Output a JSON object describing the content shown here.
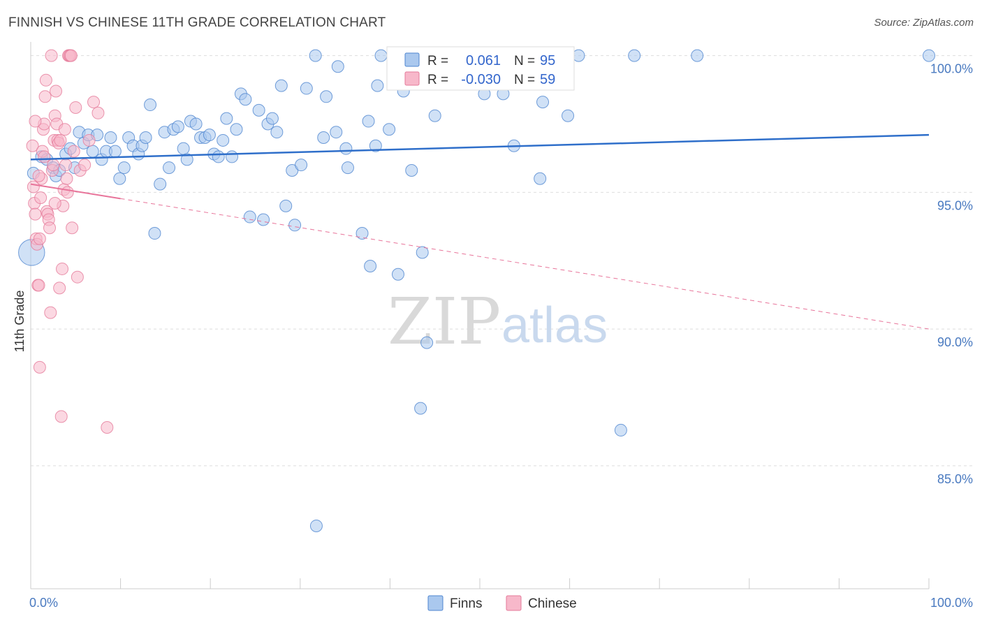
{
  "header": {
    "title": "FINNISH VS CHINESE 11TH GRADE CORRELATION CHART",
    "source": "Source: ZipAtlas.com"
  },
  "watermark": {
    "zip": "ZIP",
    "atlas": "atlas"
  },
  "stats": {
    "finns": {
      "r_label": "R =",
      "r_value": "0.061",
      "n_label": "N =",
      "n_value": "95"
    },
    "chinese": {
      "r_label": "R =",
      "r_value": "-0.030",
      "n_label": "N =",
      "n_value": "59"
    }
  },
  "legend": {
    "finns": "Finns",
    "chinese": "Chinese"
  },
  "colors": {
    "finns_fill": "#aac8ee",
    "finns_stroke": "#4f86d0",
    "finns_line": "#2f6fca",
    "chinese_fill": "#f7b8ca",
    "chinese_stroke": "#e57a9a",
    "chinese_line": "#e8749a",
    "grid": "#dddddd",
    "tick_text": "#4a7ac0"
  },
  "chart_data": {
    "type": "scatter",
    "title": "FINNISH VS CHINESE 11TH GRADE CORRELATION CHART",
    "xlabel": "",
    "ylabel": "11th Grade",
    "xlim": [
      0,
      100
    ],
    "ylim": [
      80.5,
      100.5
    ],
    "x_tick_labels": [
      "0.0%",
      "100.0%"
    ],
    "y_ticks": [
      85,
      90,
      95,
      100
    ],
    "y_tick_labels": [
      "85.0%",
      "90.0%",
      "95.0%",
      "100.0%"
    ],
    "grid": true,
    "legend_position": "bottom-center",
    "series": [
      {
        "name": "Finns",
        "r": 0.061,
        "n": 95,
        "trend": {
          "x": [
            0,
            100
          ],
          "y": [
            96.2,
            97.1
          ],
          "style": "solid"
        },
        "points": [
          {
            "x": 0.1,
            "y": 92.8,
            "s": 2.2
          },
          {
            "x": 0.3,
            "y": 95.7,
            "s": 1
          },
          {
            "x": 1.2,
            "y": 96.3,
            "s": 1
          },
          {
            "x": 1.8,
            "y": 96.2,
            "s": 1
          },
          {
            "x": 2.5,
            "y": 95.9,
            "s": 1
          },
          {
            "x": 2.8,
            "y": 95.6,
            "s": 1
          },
          {
            "x": 3.2,
            "y": 95.8,
            "s": 1
          },
          {
            "x": 3.9,
            "y": 96.4,
            "s": 1
          },
          {
            "x": 4.4,
            "y": 96.6,
            "s": 1
          },
          {
            "x": 4.9,
            "y": 95.9,
            "s": 1
          },
          {
            "x": 5.4,
            "y": 97.2,
            "s": 1
          },
          {
            "x": 5.9,
            "y": 96.8,
            "s": 1
          },
          {
            "x": 6.4,
            "y": 97.1,
            "s": 1
          },
          {
            "x": 6.9,
            "y": 96.5,
            "s": 1
          },
          {
            "x": 7.4,
            "y": 97.1,
            "s": 1
          },
          {
            "x": 7.9,
            "y": 96.2,
            "s": 1
          },
          {
            "x": 8.4,
            "y": 96.5,
            "s": 1
          },
          {
            "x": 8.9,
            "y": 97.0,
            "s": 1
          },
          {
            "x": 9.4,
            "y": 96.5,
            "s": 1
          },
          {
            "x": 9.9,
            "y": 95.5,
            "s": 1
          },
          {
            "x": 10.4,
            "y": 95.9,
            "s": 1
          },
          {
            "x": 10.9,
            "y": 97.0,
            "s": 1
          },
          {
            "x": 11.4,
            "y": 96.7,
            "s": 1
          },
          {
            "x": 12.0,
            "y": 96.4,
            "s": 1
          },
          {
            "x": 12.4,
            "y": 96.7,
            "s": 1
          },
          {
            "x": 12.8,
            "y": 97.0,
            "s": 1
          },
          {
            "x": 13.3,
            "y": 98.2,
            "s": 1
          },
          {
            "x": 13.8,
            "y": 93.5,
            "s": 1
          },
          {
            "x": 14.4,
            "y": 95.3,
            "s": 1
          },
          {
            "x": 14.9,
            "y": 97.2,
            "s": 1
          },
          {
            "x": 15.4,
            "y": 95.9,
            "s": 1
          },
          {
            "x": 15.9,
            "y": 97.3,
            "s": 1
          },
          {
            "x": 16.4,
            "y": 97.4,
            "s": 1
          },
          {
            "x": 17.0,
            "y": 96.6,
            "s": 1
          },
          {
            "x": 17.4,
            "y": 96.2,
            "s": 1
          },
          {
            "x": 17.8,
            "y": 97.6,
            "s": 1
          },
          {
            "x": 18.4,
            "y": 97.5,
            "s": 1
          },
          {
            "x": 18.9,
            "y": 97.0,
            "s": 1
          },
          {
            "x": 19.4,
            "y": 97.0,
            "s": 1
          },
          {
            "x": 19.9,
            "y": 97.1,
            "s": 1
          },
          {
            "x": 20.4,
            "y": 96.4,
            "s": 1
          },
          {
            "x": 20.9,
            "y": 96.3,
            "s": 1
          },
          {
            "x": 21.4,
            "y": 96.9,
            "s": 1
          },
          {
            "x": 21.8,
            "y": 97.7,
            "s": 1
          },
          {
            "x": 22.4,
            "y": 96.3,
            "s": 1
          },
          {
            "x": 22.9,
            "y": 97.3,
            "s": 1
          },
          {
            "x": 23.4,
            "y": 98.6,
            "s": 1
          },
          {
            "x": 23.9,
            "y": 98.4,
            "s": 1
          },
          {
            "x": 24.4,
            "y": 94.1,
            "s": 1
          },
          {
            "x": 25.4,
            "y": 98.0,
            "s": 1
          },
          {
            "x": 25.9,
            "y": 94.0,
            "s": 1
          },
          {
            "x": 26.4,
            "y": 97.5,
            "s": 1
          },
          {
            "x": 26.9,
            "y": 97.7,
            "s": 1
          },
          {
            "x": 27.4,
            "y": 97.2,
            "s": 1
          },
          {
            "x": 27.9,
            "y": 98.9,
            "s": 1
          },
          {
            "x": 28.4,
            "y": 94.5,
            "s": 1
          },
          {
            "x": 29.1,
            "y": 95.8,
            "s": 1
          },
          {
            "x": 29.4,
            "y": 93.8,
            "s": 1
          },
          {
            "x": 30.1,
            "y": 96.0,
            "s": 1
          },
          {
            "x": 30.7,
            "y": 98.8,
            "s": 1
          },
          {
            "x": 31.7,
            "y": 100.0,
            "s": 1
          },
          {
            "x": 31.8,
            "y": 82.8,
            "s": 1
          },
          {
            "x": 32.6,
            "y": 97.0,
            "s": 1
          },
          {
            "x": 32.9,
            "y": 98.5,
            "s": 1
          },
          {
            "x": 34.0,
            "y": 97.2,
            "s": 1
          },
          {
            "x": 34.2,
            "y": 99.6,
            "s": 1
          },
          {
            "x": 35.1,
            "y": 96.6,
            "s": 1
          },
          {
            "x": 35.3,
            "y": 95.9,
            "s": 1
          },
          {
            "x": 36.9,
            "y": 93.5,
            "s": 1
          },
          {
            "x": 37.6,
            "y": 97.6,
            "s": 1
          },
          {
            "x": 37.8,
            "y": 92.3,
            "s": 1
          },
          {
            "x": 38.4,
            "y": 96.7,
            "s": 1
          },
          {
            "x": 38.6,
            "y": 98.9,
            "s": 1
          },
          {
            "x": 39.0,
            "y": 100.0,
            "s": 1
          },
          {
            "x": 39.9,
            "y": 97.3,
            "s": 1
          },
          {
            "x": 40.9,
            "y": 92.0,
            "s": 1
          },
          {
            "x": 41.5,
            "y": 98.7,
            "s": 1
          },
          {
            "x": 42.4,
            "y": 95.8,
            "s": 1
          },
          {
            "x": 43.4,
            "y": 87.1,
            "s": 1
          },
          {
            "x": 43.6,
            "y": 92.8,
            "s": 1
          },
          {
            "x": 44.1,
            "y": 89.5,
            "s": 1
          },
          {
            "x": 45.0,
            "y": 97.8,
            "s": 1
          },
          {
            "x": 50.5,
            "y": 98.6,
            "s": 1
          },
          {
            "x": 52.6,
            "y": 98.6,
            "s": 1
          },
          {
            "x": 52.8,
            "y": 100.0,
            "s": 1
          },
          {
            "x": 53.8,
            "y": 96.7,
            "s": 1
          },
          {
            "x": 56.7,
            "y": 95.5,
            "s": 1
          },
          {
            "x": 57.0,
            "y": 98.3,
            "s": 1
          },
          {
            "x": 58.4,
            "y": 100.0,
            "s": 1
          },
          {
            "x": 59.8,
            "y": 97.8,
            "s": 1
          },
          {
            "x": 61.0,
            "y": 100.0,
            "s": 1
          },
          {
            "x": 65.7,
            "y": 86.3,
            "s": 1
          },
          {
            "x": 67.2,
            "y": 100.0,
            "s": 1
          },
          {
            "x": 74.2,
            "y": 100.0,
            "s": 1
          },
          {
            "x": 100.0,
            "y": 100.0,
            "s": 1
          }
        ]
      },
      {
        "name": "Chinese",
        "r": -0.03,
        "n": 59,
        "trend": {
          "x": [
            0,
            100
          ],
          "y": [
            95.3,
            90.0
          ],
          "solid_until_x": 10,
          "style": "solid-then-dashed"
        },
        "points": [
          {
            "x": 0.2,
            "y": 96.7,
            "s": 1
          },
          {
            "x": 0.3,
            "y": 95.2,
            "s": 1
          },
          {
            "x": 0.4,
            "y": 94.6,
            "s": 1
          },
          {
            "x": 0.5,
            "y": 94.2,
            "s": 1
          },
          {
            "x": 0.6,
            "y": 93.3,
            "s": 1
          },
          {
            "x": 0.7,
            "y": 93.1,
            "s": 1
          },
          {
            "x": 0.8,
            "y": 91.6,
            "s": 1
          },
          {
            "x": 0.9,
            "y": 91.6,
            "s": 1
          },
          {
            "x": 1.0,
            "y": 88.6,
            "s": 1
          },
          {
            "x": 1.1,
            "y": 94.8,
            "s": 1
          },
          {
            "x": 1.2,
            "y": 95.5,
            "s": 1
          },
          {
            "x": 1.3,
            "y": 96.5,
            "s": 1
          },
          {
            "x": 1.4,
            "y": 97.3,
            "s": 1
          },
          {
            "x": 1.5,
            "y": 97.5,
            "s": 1
          },
          {
            "x": 1.6,
            "y": 98.5,
            "s": 1
          },
          {
            "x": 1.7,
            "y": 99.1,
            "s": 1
          },
          {
            "x": 1.8,
            "y": 94.3,
            "s": 1
          },
          {
            "x": 1.9,
            "y": 94.2,
            "s": 1
          },
          {
            "x": 2.0,
            "y": 94.0,
            "s": 1
          },
          {
            "x": 2.1,
            "y": 93.7,
            "s": 1
          },
          {
            "x": 2.2,
            "y": 90.6,
            "s": 1
          },
          {
            "x": 2.3,
            "y": 100.0,
            "s": 1
          },
          {
            "x": 2.4,
            "y": 95.8,
            "s": 1
          },
          {
            "x": 2.5,
            "y": 96.0,
            "s": 1
          },
          {
            "x": 2.6,
            "y": 96.9,
            "s": 1
          },
          {
            "x": 2.7,
            "y": 97.8,
            "s": 1
          },
          {
            "x": 2.8,
            "y": 98.7,
            "s": 1
          },
          {
            "x": 2.9,
            "y": 97.5,
            "s": 1
          },
          {
            "x": 3.0,
            "y": 96.9,
            "s": 1
          },
          {
            "x": 3.1,
            "y": 96.8,
            "s": 1
          },
          {
            "x": 3.2,
            "y": 91.5,
            "s": 1
          },
          {
            "x": 3.3,
            "y": 96.9,
            "s": 1
          },
          {
            "x": 3.4,
            "y": 86.8,
            "s": 1
          },
          {
            "x": 3.5,
            "y": 92.2,
            "s": 1
          },
          {
            "x": 3.6,
            "y": 94.5,
            "s": 1
          },
          {
            "x": 3.7,
            "y": 95.1,
            "s": 1
          },
          {
            "x": 3.8,
            "y": 97.3,
            "s": 1
          },
          {
            "x": 3.9,
            "y": 96.0,
            "s": 1
          },
          {
            "x": 4.0,
            "y": 95.5,
            "s": 1
          },
          {
            "x": 4.1,
            "y": 95.0,
            "s": 1
          },
          {
            "x": 4.2,
            "y": 100.0,
            "s": 1
          },
          {
            "x": 4.3,
            "y": 100.0,
            "s": 1
          },
          {
            "x": 4.4,
            "y": 100.0,
            "s": 1
          },
          {
            "x": 4.5,
            "y": 100.0,
            "s": 1
          },
          {
            "x": 4.6,
            "y": 93.7,
            "s": 1
          },
          {
            "x": 4.8,
            "y": 96.5,
            "s": 1
          },
          {
            "x": 5.0,
            "y": 98.1,
            "s": 1
          },
          {
            "x": 5.2,
            "y": 91.9,
            "s": 1
          },
          {
            "x": 5.5,
            "y": 95.8,
            "s": 1
          },
          {
            "x": 6.0,
            "y": 96.0,
            "s": 1
          },
          {
            "x": 6.5,
            "y": 96.9,
            "s": 1
          },
          {
            "x": 7.0,
            "y": 98.3,
            "s": 1
          },
          {
            "x": 7.5,
            "y": 97.9,
            "s": 1
          },
          {
            "x": 8.5,
            "y": 86.4,
            "s": 1
          },
          {
            "x": 1.0,
            "y": 93.3,
            "s": 1
          },
          {
            "x": 0.9,
            "y": 95.6,
            "s": 1
          },
          {
            "x": 2.7,
            "y": 94.6,
            "s": 1
          },
          {
            "x": 1.5,
            "y": 96.3,
            "s": 1
          },
          {
            "x": 0.5,
            "y": 97.6,
            "s": 1
          }
        ]
      }
    ]
  }
}
